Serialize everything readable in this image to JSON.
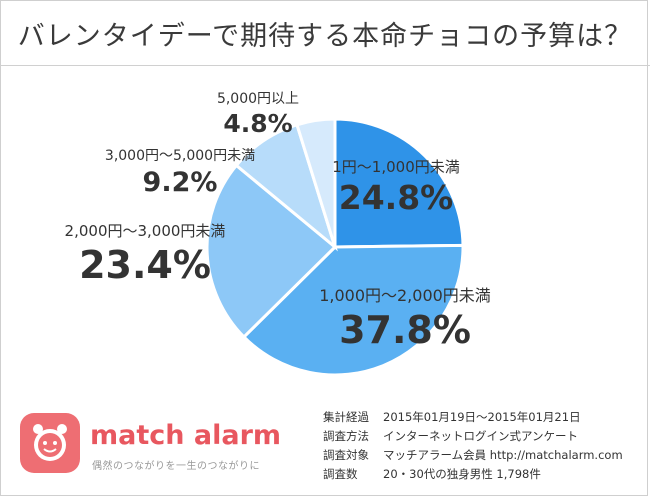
{
  "title": "バレンタイデーで期待する本命チョコの予算は？",
  "chart_data": {
    "type": "pie",
    "slices": [
      {
        "label": "1円～1,000円未満",
        "percent_label": "24.8%",
        "value": 24.8,
        "color": "#2f93e8"
      },
      {
        "label": "1,000円～2,000円未満",
        "percent_label": "37.8%",
        "value": 37.8,
        "color": "#5ab0f2"
      },
      {
        "label": "2,000円～3,000円未満",
        "percent_label": "23.4%",
        "value": 23.4,
        "color": "#8dc8f7"
      },
      {
        "label": "3,000円～5,000円未満",
        "percent_label": "9.2%",
        "value": 9.2,
        "color": "#b7dcfa"
      },
      {
        "label": "5,000円以上",
        "percent_label": "4.8%",
        "value": 4.8,
        "color": "#d6eafc"
      }
    ]
  },
  "logo": {
    "name": "match alarm",
    "tagline": "偶然のつながりを一生のつながりに"
  },
  "info": [
    {
      "key": "集計経過",
      "value": "2015年01月19日～2015年01月21日"
    },
    {
      "key": "調査方法",
      "value": "インターネットログイン式アンケート"
    },
    {
      "key": "調査対象",
      "value": "マッチアラーム会員 http://matchalarm.com"
    },
    {
      "key": "調査数",
      "value": "20・30代の独身男性 1,798件"
    }
  ]
}
